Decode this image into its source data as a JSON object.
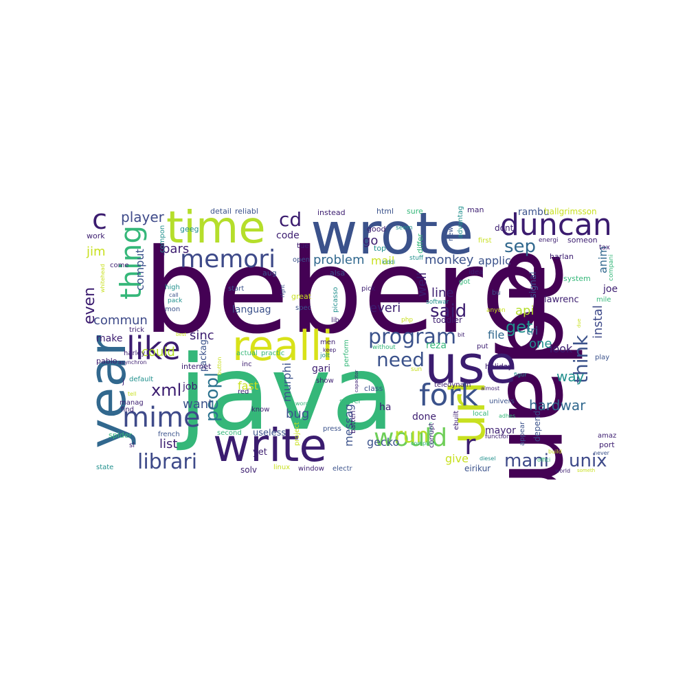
{
  "words": [
    {
      "text": "beberg",
      "color": "#440154"
    },
    {
      "text": "java",
      "color": "#35b779"
    },
    {
      "text": "adam",
      "color": "#440154"
    },
    {
      "text": "wrote",
      "color": "#3b528b"
    },
    {
      "text": "use",
      "color": "#3b1c6f"
    },
    {
      "text": "write",
      "color": "#3b1c6f"
    },
    {
      "text": "year",
      "color": "#31688e"
    },
    {
      "text": "time",
      "color": "#b5de2b"
    },
    {
      "text": "realli",
      "color": "#d8e219"
    },
    {
      "text": "url",
      "color": "#c8e020"
    },
    {
      "text": "duncan",
      "color": "#3b1c6f"
    },
    {
      "text": "like",
      "color": "#3b1c6f"
    },
    {
      "text": "fork",
      "color": "#3b528b"
    },
    {
      "text": "mime",
      "color": "#3e4a89"
    },
    {
      "text": "thing",
      "color": "#35b779"
    },
    {
      "text": "memori",
      "color": "#3e4a89"
    },
    {
      "text": "would",
      "color": "#6ece58"
    },
    {
      "text": "program",
      "color": "#3b528b"
    },
    {
      "text": "need",
      "color": "#3b528b"
    },
    {
      "text": "run",
      "color": "#b5de2b"
    },
    {
      "text": "librari",
      "color": "#3e4a89"
    },
    {
      "text": "mani",
      "color": "#3e4a89"
    },
    {
      "text": "unix",
      "color": "#3e4a89"
    },
    {
      "text": "c",
      "color": "#3b1c6f"
    },
    {
      "text": "cd",
      "color": "#3b1c6f"
    },
    {
      "text": "sep",
      "color": "#31688e"
    },
    {
      "text": "think",
      "color": "#3b528b"
    },
    {
      "text": "said",
      "color": "#3b1c6f"
    },
    {
      "text": "xml",
      "color": "#3b1c6f"
    },
    {
      "text": "peopl",
      "color": "#2c728e"
    },
    {
      "text": "get",
      "color": "#21908d"
    },
    {
      "text": "r",
      "color": "#3b1c6f"
    },
    {
      "text": "player",
      "color": "#3e4a89"
    },
    {
      "text": "even",
      "color": "#3b1c6f"
    },
    {
      "text": "way",
      "color": "#21908d"
    },
    {
      "text": "hardwar",
      "color": "#31688e"
    },
    {
      "text": "problem",
      "color": "#31688e"
    },
    {
      "text": "monkey",
      "color": "#3b528b"
    },
    {
      "text": "pars",
      "color": "#3b1c6f"
    },
    {
      "text": "commun",
      "color": "#3e4a89"
    },
    {
      "text": "could",
      "color": "#b5de2b"
    },
    {
      "text": "list",
      "color": "#3b1c6f"
    },
    {
      "text": "sinc",
      "color": "#3b1c6f"
    },
    {
      "text": "want",
      "color": "#3b528b"
    },
    {
      "text": "everi",
      "color": "#3b1c6f"
    },
    {
      "text": "line",
      "color": "#3b1c6f"
    },
    {
      "text": "api",
      "color": "#b5de2b"
    },
    {
      "text": "one",
      "color": "#21908d"
    },
    {
      "text": "look",
      "color": "#3b1c6f"
    },
    {
      "text": "instal",
      "color": "#3e4a89"
    },
    {
      "text": "file",
      "color": "#31688e"
    },
    {
      "text": "well",
      "color": "#3b1c6f"
    },
    {
      "text": "go",
      "color": "#3b1c6f"
    },
    {
      "text": "mail",
      "color": "#c8e020"
    },
    {
      "text": "applic",
      "color": "#3b528b"
    },
    {
      "text": "comput",
      "color": "#3b528b"
    },
    {
      "text": "jim",
      "color": "#c8e020"
    },
    {
      "text": "fast",
      "color": "#c8e020"
    },
    {
      "text": "bug",
      "color": "#3b528b"
    },
    {
      "text": "give",
      "color": "#c8e020"
    },
    {
      "text": "gecko",
      "color": "#3b528b"
    },
    {
      "text": "messag",
      "color": "#3b528b"
    },
    {
      "text": "murphi",
      "color": "#3b528b"
    },
    {
      "text": "anim",
      "color": "#31688e"
    },
    {
      "text": "make",
      "color": "#3b1c6f"
    },
    {
      "text": "rambu",
      "color": "#3b528b"
    },
    {
      "text": "code",
      "color": "#3b1c6f"
    },
    {
      "text": "languag",
      "color": "#3b528b"
    },
    {
      "text": "packag",
      "color": "#3b528b"
    },
    {
      "text": "job",
      "color": "#3b1c6f"
    },
    {
      "text": "reza",
      "color": "#35b779"
    },
    {
      "text": "gari",
      "color": "#3b1c6f"
    },
    {
      "text": "tri",
      "color": "#31688e"
    },
    {
      "text": "joe",
      "color": "#3b1c6f"
    },
    {
      "text": "done",
      "color": "#3b1c6f"
    },
    {
      "text": "lawrenc",
      "color": "#3b1c6f"
    },
    {
      "text": "mayor",
      "color": "#3b1c6f"
    },
    {
      "text": "depend",
      "color": "#3b528b"
    },
    {
      "text": "toddler",
      "color": "#3b1c6f"
    },
    {
      "text": "signal",
      "color": "#3b528b"
    },
    {
      "text": "ha",
      "color": "#3b1c6f"
    },
    {
      "text": "eirikur",
      "color": "#3b528b"
    },
    {
      "text": "useless",
      "color": "#3b528b"
    },
    {
      "text": "yet",
      "color": "#3b1c6f"
    },
    {
      "text": "solv",
      "color": "#3b1c6f"
    },
    {
      "text": "holiday",
      "color": "#3b1c6f"
    },
    {
      "text": "hallgrimsson",
      "color": "#c8e020"
    },
    {
      "text": "dont",
      "color": "#3b1c6f"
    },
    {
      "text": "man",
      "color": "#3b1c6f"
    },
    {
      "text": "html",
      "color": "#3b528b"
    },
    {
      "text": "sure",
      "color": "#35b779"
    },
    {
      "text": "instead",
      "color": "#3b1c6f"
    },
    {
      "text": "detail",
      "color": "#3b528b"
    },
    {
      "text": "reliabl",
      "color": "#3b528b"
    },
    {
      "text": "geeg",
      "color": "#21908d"
    },
    {
      "text": "compon",
      "color": "#21908d"
    },
    {
      "text": "work",
      "color": "#3b1c6f"
    },
    {
      "text": "good",
      "color": "#3b1c6f"
    },
    {
      "text": "seem",
      "color": "#21908d"
    },
    {
      "text": "tue",
      "color": "#3b1c6f"
    },
    {
      "text": "top",
      "color": "#21908d"
    },
    {
      "text": "open",
      "color": "#3b528b"
    },
    {
      "text": "new",
      "color": "#3b528b"
    },
    {
      "text": "advantag",
      "color": "#21908d"
    },
    {
      "text": "differ",
      "color": "#35b779"
    },
    {
      "text": "first",
      "color": "#c8e020"
    },
    {
      "text": "stuff",
      "color": "#21908d"
    },
    {
      "text": "kiddi",
      "color": "#21908d"
    },
    {
      "text": "someon",
      "color": "#3b1c6f"
    },
    {
      "text": "energi",
      "color": "#3b1c6f"
    },
    {
      "text": "tax",
      "color": "#3b1c6f"
    },
    {
      "text": "harlan",
      "color": "#3b1c6f"
    },
    {
      "text": "system",
      "color": "#35b779"
    },
    {
      "text": "compani",
      "color": "#35b779"
    },
    {
      "text": "mile",
      "color": "#35b779"
    },
    {
      "text": "come",
      "color": "#3b1c6f"
    },
    {
      "text": "whitehead",
      "color": "#c8e020"
    },
    {
      "text": "high",
      "color": "#21908d"
    },
    {
      "text": "call",
      "color": "#3b528b"
    },
    {
      "text": "pack",
      "color": "#21908d"
    },
    {
      "text": "mon",
      "color": "#3b528b"
    },
    {
      "text": "aug",
      "color": "#3b528b"
    },
    {
      "text": "alsa",
      "color": "#3b528b"
    },
    {
      "text": "start",
      "color": "#3b528b"
    },
    {
      "text": "right",
      "color": "#3b528b"
    },
    {
      "text": "pick",
      "color": "#3b1c6f"
    },
    {
      "text": "idea",
      "color": "#3b1c6f"
    },
    {
      "text": "got",
      "color": "#35b779"
    },
    {
      "text": "bu",
      "color": "#3b528b"
    },
    {
      "text": "great",
      "color": "#c8e020"
    },
    {
      "text": "spec",
      "color": "#3b528b"
    },
    {
      "text": "picasso",
      "color": "#21908d"
    },
    {
      "text": "softwar",
      "color": "#21908d"
    },
    {
      "text": "anyon",
      "color": "#c8e020"
    },
    {
      "text": "lib",
      "color": "#3b1c6f"
    },
    {
      "text": "php",
      "color": "#c8e020"
    },
    {
      "text": "bit",
      "color": "#3b1c6f"
    },
    {
      "text": "due",
      "color": "#c8e020"
    },
    {
      "text": "trick",
      "color": "#3b1c6f"
    },
    {
      "text": "best",
      "color": "#c8e020"
    },
    {
      "text": "harley",
      "color": "#3b1c6f"
    },
    {
      "text": "pablo",
      "color": "#3b1c6f"
    },
    {
      "text": "asynchron",
      "color": "#3b1c6f"
    },
    {
      "text": "button",
      "color": "#c8e020"
    },
    {
      "text": "actual",
      "color": "#35b779"
    },
    {
      "text": "practic",
      "color": "#35b779"
    },
    {
      "text": "men",
      "color": "#3b1c6f"
    },
    {
      "text": "keep",
      "color": "#3b1c6f"
    },
    {
      "text": "jolt",
      "color": "#21908d"
    },
    {
      "text": "perform",
      "color": "#35b779"
    },
    {
      "text": "without",
      "color": "#35b779"
    },
    {
      "text": "put",
      "color": "#3b1c6f"
    },
    {
      "text": "inc",
      "color": "#3b1c6f"
    },
    {
      "text": "internet",
      "color": "#3b1c6f"
    },
    {
      "text": "red",
      "color": "#3b1c6f"
    },
    {
      "text": "sun",
      "color": "#c8e020"
    },
    {
      "text": "figur",
      "color": "#21908d"
    },
    {
      "text": "play",
      "color": "#3b528b"
    },
    {
      "text": "default",
      "color": "#21908d"
    },
    {
      "text": "j",
      "color": "#3b1c6f"
    },
    {
      "text": "tell",
      "color": "#c8e020"
    },
    {
      "text": "manag",
      "color": "#3b1c6f"
    },
    {
      "text": "find",
      "color": "#3b1c6f"
    },
    {
      "text": "show",
      "color": "#3b1c6f"
    },
    {
      "text": "capacitor",
      "color": "#3b1c6f"
    },
    {
      "text": "class",
      "color": "#3b528b"
    },
    {
      "text": "teledynam",
      "color": "#3b1c6f"
    },
    {
      "text": "almost",
      "color": "#3b1c6f"
    },
    {
      "text": "univers",
      "color": "#3b528b"
    },
    {
      "text": "know",
      "color": "#3b1c6f"
    },
    {
      "text": "word",
      "color": "#35b779"
    },
    {
      "text": "server",
      "color": "#35b779"
    },
    {
      "text": "local",
      "color": "#35b779"
    },
    {
      "text": "adhes",
      "color": "#35b779"
    },
    {
      "text": "spider",
      "color": "#35b779"
    },
    {
      "text": "french",
      "color": "#3b528b"
    },
    {
      "text": "second",
      "color": "#35b779"
    },
    {
      "text": "press",
      "color": "#3b528b"
    },
    {
      "text": "batteri",
      "color": "#3b1c6f"
    },
    {
      "text": "project",
      "color": "#c8e020"
    },
    {
      "text": "complain",
      "color": "#35b779"
    },
    {
      "text": "much",
      "color": "#35b779"
    },
    {
      "text": "corrupt",
      "color": "#3b1c6f"
    },
    {
      "text": "function",
      "color": "#3b1c6f"
    },
    {
      "text": "appear",
      "color": "#3b528b"
    },
    {
      "text": "sl",
      "color": "#3b1c6f"
    },
    {
      "text": "diesel",
      "color": "#21908d"
    },
    {
      "text": "build",
      "color": "#c8e020"
    },
    {
      "text": "amaz",
      "color": "#3b1c6f"
    },
    {
      "text": "port",
      "color": "#3b1c6f"
    },
    {
      "text": "never",
      "color": "#3b528b"
    },
    {
      "text": "state",
      "color": "#21908d"
    },
    {
      "text": "linux",
      "color": "#c8e020"
    },
    {
      "text": "window",
      "color": "#3b1c6f"
    },
    {
      "text": "electr",
      "color": "#3b528b"
    },
    {
      "text": "world",
      "color": "#3b1c6f"
    },
    {
      "text": "someth",
      "color": "#c8e020"
    },
    {
      "text": "offici",
      "color": "#35b779"
    },
    {
      "text": "ebuilt",
      "color": "#3b1c6f"
    }
  ]
}
